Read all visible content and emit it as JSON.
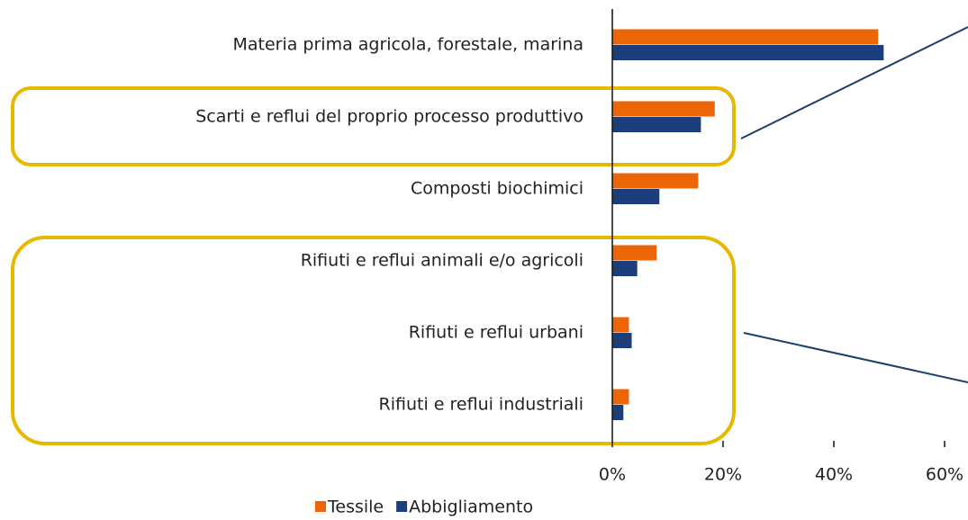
{
  "chart_data": {
    "type": "barh",
    "categories": [
      "Materia prima agricola, forestale, marina",
      "Scarti e reflui del proprio processo produttivo",
      "Composti biochimici",
      "Rifiuti e reflui animali e/o agricoli",
      "Rifiuti e reflui urbani",
      "Rifiuti e reflui industriali"
    ],
    "series": [
      {
        "name": "Tessile",
        "color": "#ec6608",
        "values": [
          48,
          18.5,
          15.5,
          8,
          3,
          3
        ]
      },
      {
        "name": "Abbigliamento",
        "color": "#1c3f7c",
        "values": [
          49,
          16,
          8.5,
          4.5,
          3.5,
          2
        ]
      }
    ],
    "xlim": [
      0,
      60
    ],
    "xticks": [
      {
        "value": 0,
        "label": "0%"
      },
      {
        "value": 20,
        "label": "20%"
      },
      {
        "value": 40,
        "label": "40%"
      },
      {
        "value": 60,
        "label": "60%"
      }
    ],
    "legend": "bottom"
  }
}
